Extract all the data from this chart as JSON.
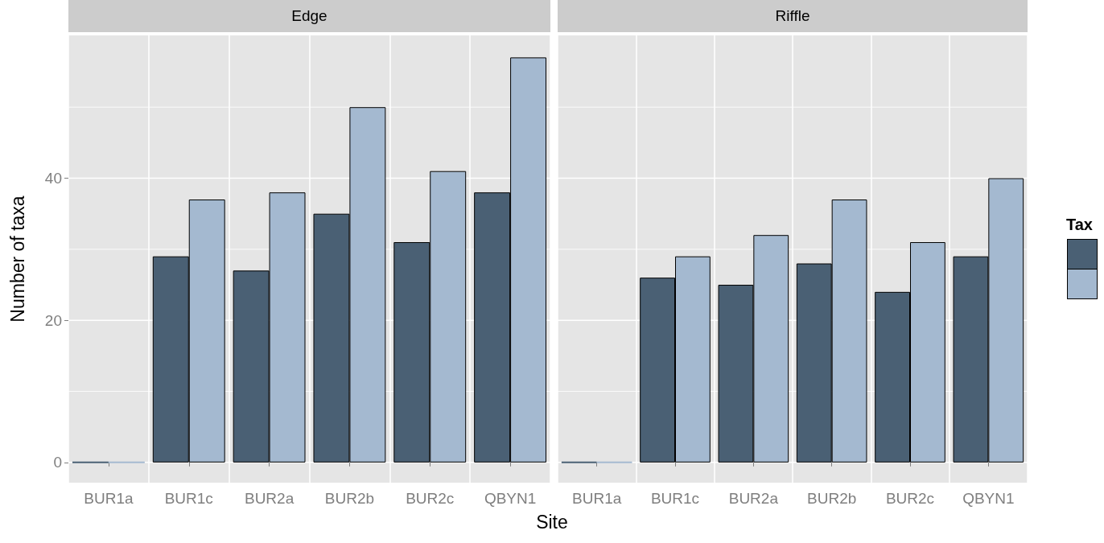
{
  "chart_data": [
    {
      "type": "bar",
      "title": "Edge",
      "ylabel": "Number of taxa",
      "xlabel": "Site",
      "grid": true,
      "categories": [
        "BUR1a",
        "BUR1c",
        "BUR2a",
        "BUR2b",
        "BUR2c",
        "QBYN1"
      ],
      "series": [
        {
          "color": "#4a6074",
          "values": [
            0,
            29,
            27,
            35,
            31,
            38
          ]
        },
        {
          "color": "#a4b9d0",
          "values": [
            0,
            37,
            38,
            50,
            41,
            57
          ]
        }
      ],
      "ylim": [
        -2.85,
        60.1
      ],
      "yticks": [
        0,
        {
          "value": 10,
          "label": null
        },
        20,
        {
          "value": 30,
          "label": null
        },
        40,
        {
          "value": 50,
          "label": null
        }
      ]
    },
    {
      "type": "bar",
      "title": "Riffle",
      "legend_title": "Tax",
      "grid": true,
      "tick_labels": "x",
      "categories": [
        "BUR1a",
        "BUR1c",
        "BUR2a",
        "BUR2b",
        "BUR2c",
        "QBYN1"
      ],
      "series": [
        {
          "color": "#4a6074",
          "values": [
            0,
            26,
            25,
            28,
            24,
            29
          ]
        },
        {
          "color": "#a4b9d0",
          "values": [
            0,
            29,
            32,
            37,
            31,
            40
          ]
        }
      ],
      "ylim": [
        -2.85,
        60.1
      ],
      "yticks": [
        0,
        {
          "value": 10,
          "label": null
        },
        20,
        {
          "value": 30,
          "label": null
        },
        40,
        {
          "value": 50,
          "label": null
        }
      ]
    }
  ]
}
